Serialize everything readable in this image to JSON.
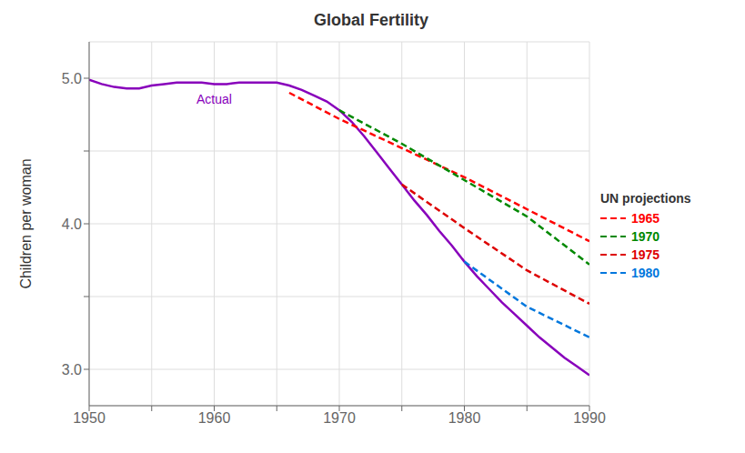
{
  "chart_data": {
    "type": "line",
    "title": "Global Fertility",
    "ylabel": "Children per woman",
    "annotations": [
      "UN projections"
    ],
    "xlim": [
      1950,
      1990
    ],
    "ylim": [
      2.75,
      5.25
    ],
    "xticks": [
      1950,
      {
        "value": 1955,
        "label": ""
      },
      1960,
      {
        "value": 1965,
        "label": ""
      },
      1970,
      {
        "value": 1975,
        "label": ""
      },
      1980,
      {
        "value": 1985,
        "label": ""
      },
      1990
    ],
    "yticks": [
      {
        "value": 3.0,
        "label": "3.0"
      },
      {
        "value": 3.5,
        "label": ""
      },
      {
        "value": 4.0,
        "label": "4.0"
      },
      {
        "value": 4.5,
        "label": ""
      },
      {
        "value": 5.0,
        "label": "5.0"
      }
    ],
    "grid": true,
    "legend": "right",
    "series": [
      {
        "name": "Actual",
        "color": "#8800bb",
        "line_style": "solid",
        "x": [
          1950,
          1951,
          1952,
          1953,
          1954,
          1955,
          1956,
          1957,
          1958,
          1959,
          1960,
          1961,
          1962,
          1963,
          1964,
          1965,
          1966,
          1967,
          1968,
          1969,
          1970,
          1971,
          1972,
          1973,
          1974,
          1975,
          1976,
          1977,
          1978,
          1979,
          1980,
          1981,
          1982,
          1983,
          1984,
          1985,
          1986,
          1987,
          1988,
          1989,
          1990
        ],
        "values": [
          4.99,
          4.96,
          4.94,
          4.93,
          4.93,
          4.95,
          4.96,
          4.97,
          4.97,
          4.97,
          4.96,
          4.96,
          4.97,
          4.97,
          4.97,
          4.97,
          4.95,
          4.92,
          4.88,
          4.84,
          4.78,
          4.7,
          4.6,
          4.49,
          4.38,
          4.27,
          4.16,
          4.06,
          3.95,
          3.85,
          3.74,
          3.64,
          3.55,
          3.46,
          3.38,
          3.3,
          3.22,
          3.15,
          3.08,
          3.02,
          2.96
        ]
      },
      {
        "name": "1965",
        "color": "#ff0000",
        "line_style": "dashed",
        "x": [
          1966,
          1970,
          1975,
          1980,
          1985,
          1990
        ],
        "values": [
          4.9,
          4.72,
          4.52,
          4.32,
          4.1,
          3.88
        ]
      },
      {
        "name": "1970",
        "color": "#008800",
        "line_style": "dashed",
        "x": [
          1970,
          1975,
          1980,
          1985,
          1990
        ],
        "values": [
          4.78,
          4.55,
          4.3,
          4.05,
          3.72
        ]
      },
      {
        "name": "1975",
        "color": "#dd0000",
        "line_style": "dashed",
        "x": [
          1975,
          1980,
          1985,
          1990
        ],
        "values": [
          4.27,
          3.97,
          3.68,
          3.45
        ]
      },
      {
        "name": "1980",
        "color": "#0077dd",
        "line_style": "dashed",
        "x": [
          1980,
          1985,
          1990
        ],
        "values": [
          3.74,
          3.43,
          3.22
        ]
      }
    ]
  }
}
